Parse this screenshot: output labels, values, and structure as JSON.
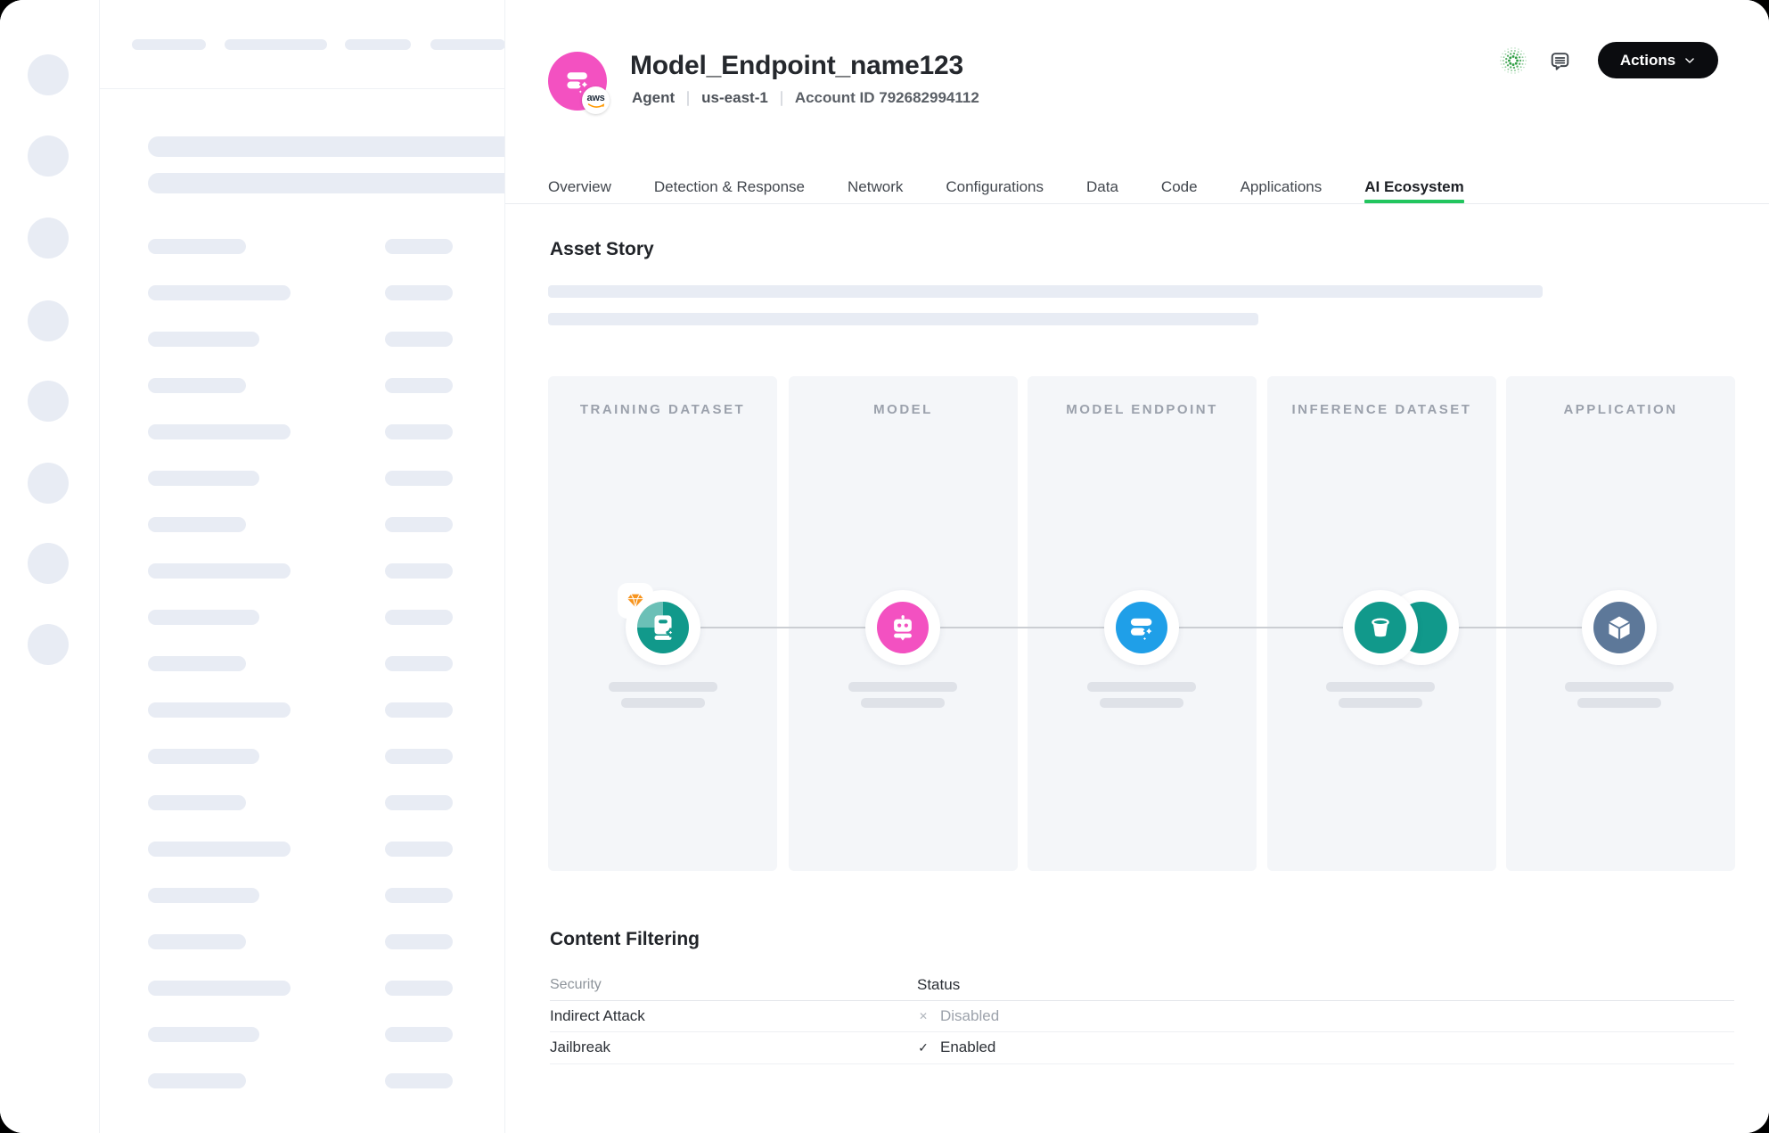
{
  "header": {
    "title": "Model_Endpoint_name123",
    "entity_type": "Agent",
    "region": "us-east-1",
    "account": "Account ID 792682994112",
    "aws_badge_label": "aws",
    "actions": {
      "label": "Actions"
    }
  },
  "icons": {
    "ai_activity_icon": "green-dotted-burst",
    "comment_icon": "speech-bubble",
    "chevron_down_icon": "chevron-down",
    "avatar_icon": "layers-sparkle",
    "aws_smile_icon": "orange-smile-arrow"
  },
  "tabs": [
    {
      "label": "Overview",
      "active": false
    },
    {
      "label": "Detection & Response",
      "active": false
    },
    {
      "label": "Network",
      "active": false
    },
    {
      "label": "Configurations",
      "active": false
    },
    {
      "label": "Data",
      "active": false
    },
    {
      "label": "Code",
      "active": false
    },
    {
      "label": "Applications",
      "active": false
    },
    {
      "label": "AI Ecosystem",
      "active": true
    }
  ],
  "asset_story": {
    "heading": "Asset Story"
  },
  "pipeline": {
    "stages": [
      {
        "label": "TRAINING DATASET",
        "icon": "book-sparkle-icon",
        "color": "#11998B",
        "corner_badge": "gem-icon"
      },
      {
        "label": "MODEL",
        "icon": "bot-icon",
        "color": "#F351C1"
      },
      {
        "label": "MODEL ENDPOINT",
        "icon": "layers-sparkle-icon",
        "color": "#1F9FE8"
      },
      {
        "label": "INFERENCE DATASET",
        "icon": "bucket-icon",
        "color": "#11998B",
        "stacked": true
      },
      {
        "label": "APPLICATION",
        "icon": "cube-icon",
        "color": "#5D7899"
      }
    ]
  },
  "content_filtering": {
    "heading": "Content Filtering",
    "columns": {
      "security": "Security",
      "status": "Status"
    },
    "rows": [
      {
        "security": "Indirect Attack",
        "mark": "✕",
        "status": "Disabled",
        "enabled": false
      },
      {
        "security": "Jailbreak",
        "mark": "✓",
        "status": "Enabled",
        "enabled": true
      }
    ]
  },
  "colors": {
    "accent_green": "#22C55E",
    "teal": "#11998B",
    "pink": "#F351C1",
    "blue": "#1F9FE8",
    "slate": "#5D7899",
    "gem_orange": "#F7941E",
    "aws_orange": "#FF9900",
    "actions_bg": "#0B0C0F",
    "skeleton": "#E8ECF4"
  }
}
